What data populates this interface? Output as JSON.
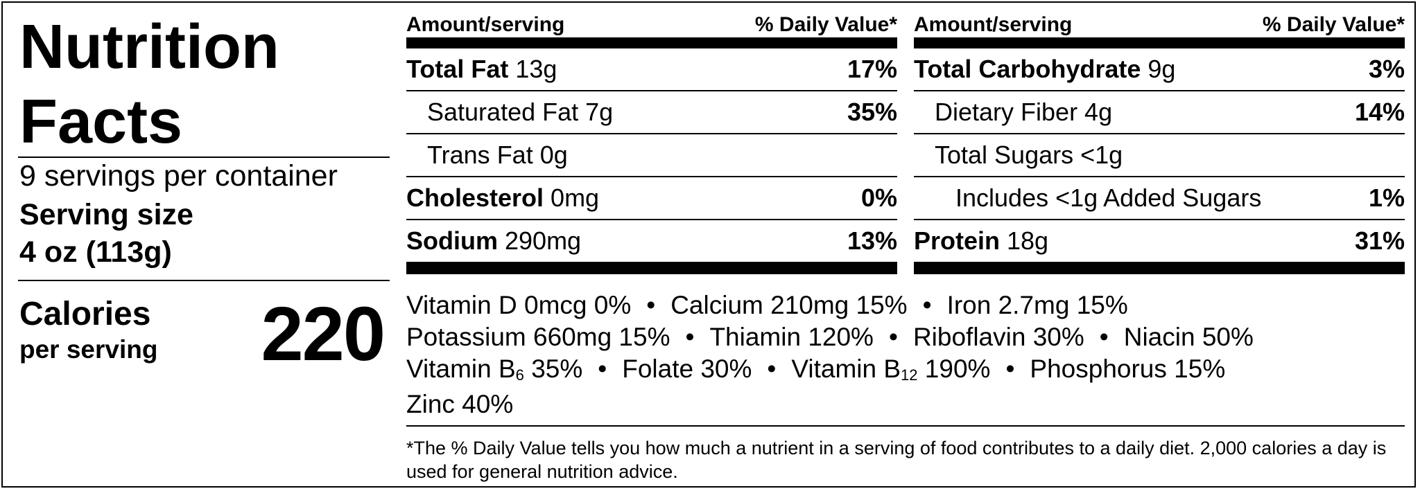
{
  "title_line1": "Nutrition",
  "title_line2": "Facts",
  "servings_per_container": "9 servings per container",
  "serving_size_label": "Serving size",
  "serving_size_value": "4 oz (113g)",
  "calories_label": "Calories",
  "calories_sublabel": "per serving",
  "calories_value": "220",
  "left_table": {
    "header_amount": "Amount/serving",
    "header_dv": "% Daily Value*",
    "rows": [
      {
        "name": "Total Fat",
        "amount": " 13g",
        "dv": "17%"
      },
      {
        "name": "Saturated Fat 7g",
        "amount": "",
        "dv": "35%"
      },
      {
        "name": "Trans Fat 0g",
        "amount": "",
        "dv": ""
      },
      {
        "name": "Cholesterol",
        "amount": " 0mg",
        "dv": "0%"
      },
      {
        "name": "Sodium",
        "amount": " 290mg",
        "dv": "13%"
      }
    ]
  },
  "right_table": {
    "header_amount": "Amount/serving",
    "header_dv": "% Daily Value*",
    "rows": [
      {
        "name": "Total Carbohydrate",
        "amount": " 9g",
        "dv": "3%"
      },
      {
        "name": "Dietary Fiber 4g",
        "amount": "",
        "dv": "14%"
      },
      {
        "name": "Total Sugars <1g",
        "amount": "",
        "dv": ""
      },
      {
        "name": "Includes <1g Added Sugars",
        "amount": "",
        "dv": "1%"
      },
      {
        "name": "Protein",
        "amount": " 18g",
        "dv": "31%"
      }
    ]
  },
  "vitamins": {
    "vitamin_d": "Vitamin D 0mcg 0%",
    "calcium": "Calcium 210mg 15%",
    "iron": "Iron 2.7mg 15%",
    "potassium": "Potassium 660mg 15%",
    "thiamin": "Thiamin 120%",
    "riboflavin": "Riboflavin 30%",
    "niacin": "Niacin 50%",
    "b6_name": "Vitamin B",
    "b6_sub": "6",
    "b6_value": " 35%",
    "folate": "Folate 30%",
    "b12_name": "Vitamin B",
    "b12_sub": "12",
    "b12_value": " 190%",
    "phosphorus": "Phosphorus 15%",
    "zinc": "Zinc 40%",
    "separator": "•"
  },
  "footnote": "*The % Daily Value tells you how much a nutrient in a serving of food contributes to a daily diet. 2,000 calories a day is used for general nutrition advice."
}
